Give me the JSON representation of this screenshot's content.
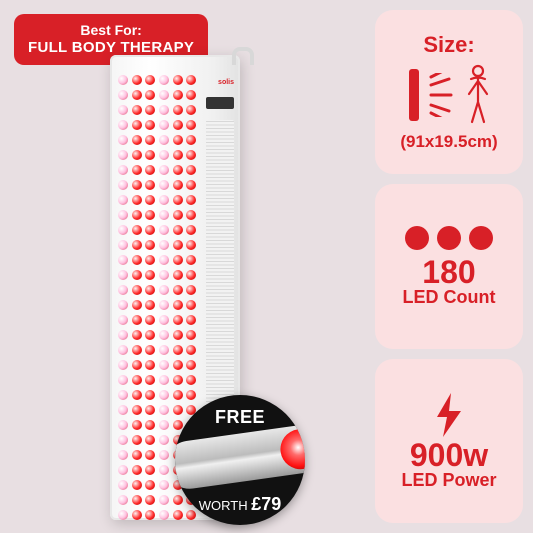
{
  "colors": {
    "accent": "#d82027",
    "card_bg": "#fbe0e1",
    "page_bg": "#e8dfe2",
    "badge_black": "#111111",
    "text_white": "#ffffff"
  },
  "badge": {
    "line1": "Best For:",
    "line2": "FULL BODY THERAPY"
  },
  "free": {
    "label": "FREE",
    "worth_label": "WORTH ",
    "worth_value": "£79"
  },
  "specs": {
    "size": {
      "title": "Size:",
      "dimensions": "(91x19.5cm)"
    },
    "led_count": {
      "value": "180",
      "label": "LED Count",
      "dot_count": 3
    },
    "power": {
      "value": "900w",
      "label": "LED Power"
    }
  },
  "product": {
    "brand": "solis",
    "led_rows": 30,
    "led_cols": 6
  }
}
